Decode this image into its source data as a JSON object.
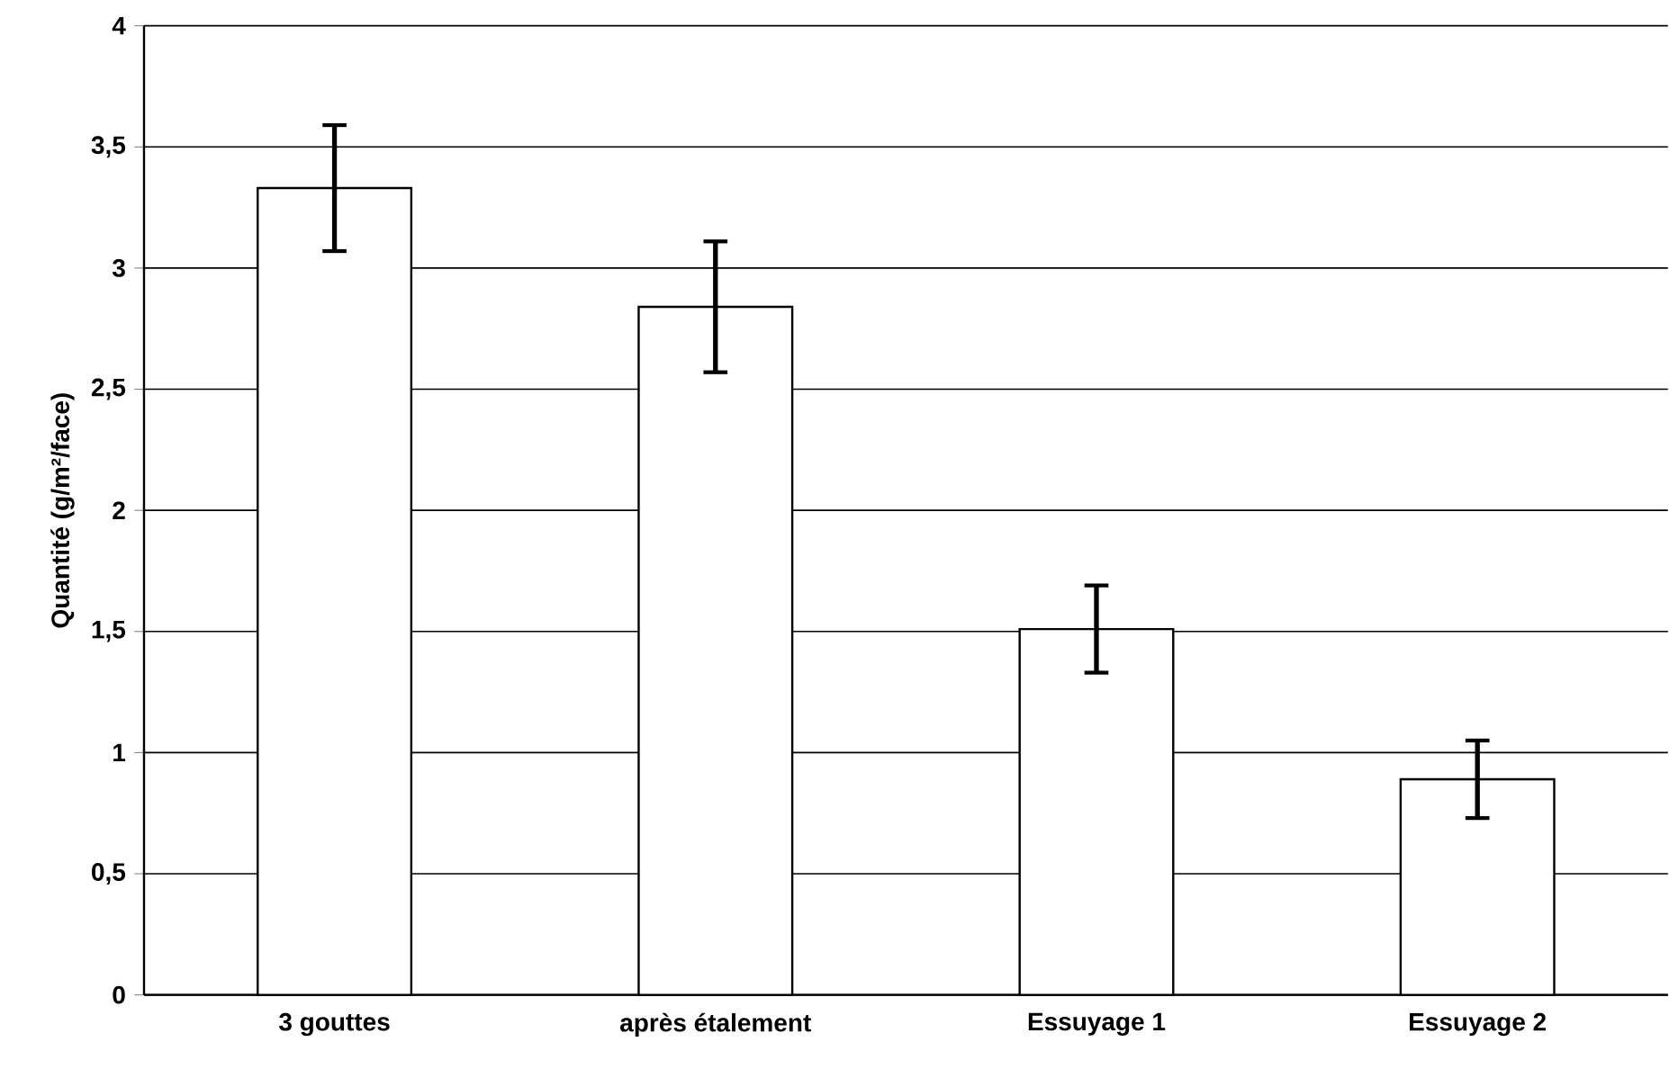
{
  "chart_data": {
    "type": "bar",
    "ylabel": "Quantité (g/m²/face)",
    "categories": [
      "3 gouttes",
      "après étalement",
      "Essuyage 1",
      "Essuyage 2"
    ],
    "values": [
      3.33,
      2.84,
      1.51,
      0.89
    ],
    "errors": [
      0.26,
      0.27,
      0.18,
      0.16
    ],
    "color": "#ffffff",
    "ylim": [
      0,
      4
    ],
    "yticks": [
      0,
      {
        "value": 0.5,
        "label": "0,5"
      },
      1,
      {
        "value": 1.5,
        "label": "1,5"
      },
      2,
      {
        "value": 2.5,
        "label": "2,5"
      },
      3,
      {
        "value": 3.5,
        "label": "3,5"
      },
      4
    ],
    "grid": "y"
  }
}
